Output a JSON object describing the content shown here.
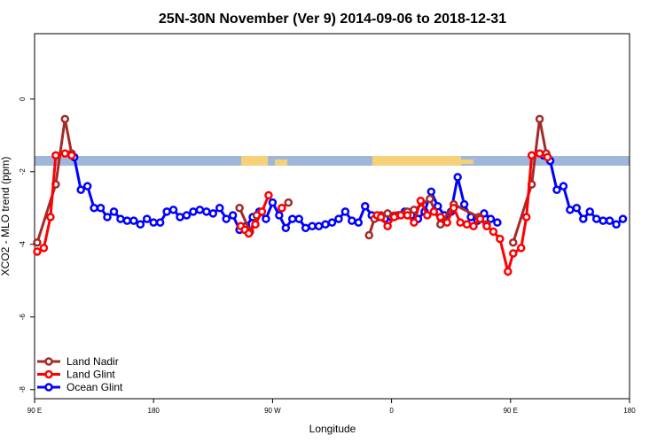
{
  "chart_data": {
    "type": "line",
    "title": "25N-30N November (Ver 9)   2014-09-06 to 2018-12-31",
    "x_label": "Longitude",
    "y_label": "XCO2 - MLO trend (ppm)",
    "xlim": [
      90,
      540
    ],
    "ylim": [
      -8.25,
      1.8
    ],
    "xticks": [
      {
        "value": 90,
        "label": "90 E"
      },
      {
        "value": 180,
        "label": "180"
      },
      {
        "value": 270,
        "label": "90 W"
      },
      {
        "value": 360,
        "label": "0"
      },
      {
        "value": 450,
        "label": "90 E"
      },
      {
        "value": 540,
        "label": "180"
      }
    ],
    "yticks": [
      0,
      -2,
      -4,
      -6,
      -8
    ],
    "legend": "bottom-left",
    "series": [
      {
        "name": "Land Nadir",
        "color": "#a52a2a",
        "x": [
          92,
          106,
          113,
          118,
          180,
          245,
          253,
          258,
          270,
          277,
          282,
          310,
          343,
          347,
          352,
          357,
          372,
          377,
          389,
          397,
          407,
          426,
          432,
          440,
          452,
          466,
          472,
          477
        ],
        "values": [
          -3.95,
          -2.35,
          -0.55,
          -1.5,
          null,
          -3.0,
          -3.65,
          -3.2,
          null,
          -3.0,
          -2.85,
          null,
          -3.75,
          -3.3,
          -3.2,
          -3.15,
          -3.1,
          -3.05,
          -2.75,
          -3.45,
          -2.9,
          -3.25,
          -3.45,
          null,
          -3.95,
          -2.35,
          -0.55,
          -1.5
        ]
      },
      {
        "name": "Land Glint",
        "color": "#ff0000",
        "x": [
          92,
          97,
          102,
          106,
          113,
          118,
          180,
          246,
          249,
          252,
          257,
          262,
          267,
          272,
          277,
          310,
          349,
          352,
          357,
          362,
          367,
          372,
          377,
          382,
          387,
          392,
          397,
          402,
          407,
          412,
          417,
          422,
          427,
          432,
          437,
          442,
          448,
          452,
          458,
          462,
          466,
          472,
          478
        ],
        "values": [
          -4.2,
          -4.1,
          -3.25,
          -1.55,
          -1.5,
          -1.55,
          null,
          -3.5,
          -3.6,
          -3.7,
          -3.45,
          -3.1,
          -2.65,
          null,
          -3.0,
          null,
          -3.2,
          -3.25,
          -3.5,
          -3.25,
          -3.2,
          -3.2,
          -3.4,
          -2.8,
          -3.2,
          -3.1,
          -3.25,
          -3.4,
          -3.0,
          -3.4,
          -3.45,
          -3.5,
          -3.3,
          -3.5,
          -3.65,
          -3.85,
          -4.75,
          -4.25,
          -4.1,
          -3.25,
          -1.55,
          -1.5,
          -1.6
        ]
      },
      {
        "name": "Ocean Glint",
        "color": "#0000ff",
        "x": [
          120,
          125,
          130,
          135,
          140,
          145,
          150,
          155,
          160,
          165,
          170,
          175,
          180,
          185,
          190,
          195,
          200,
          205,
          210,
          215,
          220,
          225,
          230,
          235,
          240,
          245,
          250,
          255,
          260,
          265,
          270,
          275,
          280,
          285,
          290,
          295,
          300,
          305,
          310,
          315,
          320,
          325,
          330,
          335,
          340,
          345,
          350,
          355,
          360,
          365,
          370,
          375,
          380,
          385,
          390,
          395,
          400,
          405,
          410,
          415,
          420,
          425,
          430,
          435,
          440,
          458,
          475,
          480,
          485,
          490,
          495,
          500,
          505,
          510,
          515,
          520,
          525,
          530,
          535
        ],
        "values": [
          -1.6,
          -2.5,
          -2.4,
          -3.0,
          -3.0,
          -3.25,
          -3.1,
          -3.3,
          -3.35,
          -3.35,
          -3.45,
          -3.3,
          -3.4,
          -3.4,
          -3.1,
          -3.05,
          -3.25,
          -3.2,
          -3.1,
          -3.05,
          -3.1,
          -3.15,
          -3.0,
          -3.3,
          -3.2,
          -3.6,
          -3.5,
          -3.25,
          -3.1,
          -3.3,
          -2.85,
          -3.2,
          -3.55,
          -3.3,
          -3.3,
          -3.55,
          -3.5,
          -3.5,
          -3.45,
          -3.4,
          -3.3,
          -3.1,
          -3.35,
          -3.4,
          -2.95,
          -3.2,
          -3.25,
          -3.3,
          -3.25,
          -3.2,
          -3.1,
          -3.2,
          -3.3,
          -3.1,
          -2.55,
          -2.95,
          -3.2,
          -3.1,
          -2.15,
          -2.9,
          -3.25,
          -3.35,
          -3.15,
          -3.3,
          -3.4,
          null,
          -1.55,
          -1.7,
          -2.5,
          -2.4,
          -3.05,
          -3.0,
          -3.3,
          -3.1,
          -3.3,
          -3.35,
          -3.35,
          -3.45,
          -3.3
        ]
      }
    ]
  }
}
